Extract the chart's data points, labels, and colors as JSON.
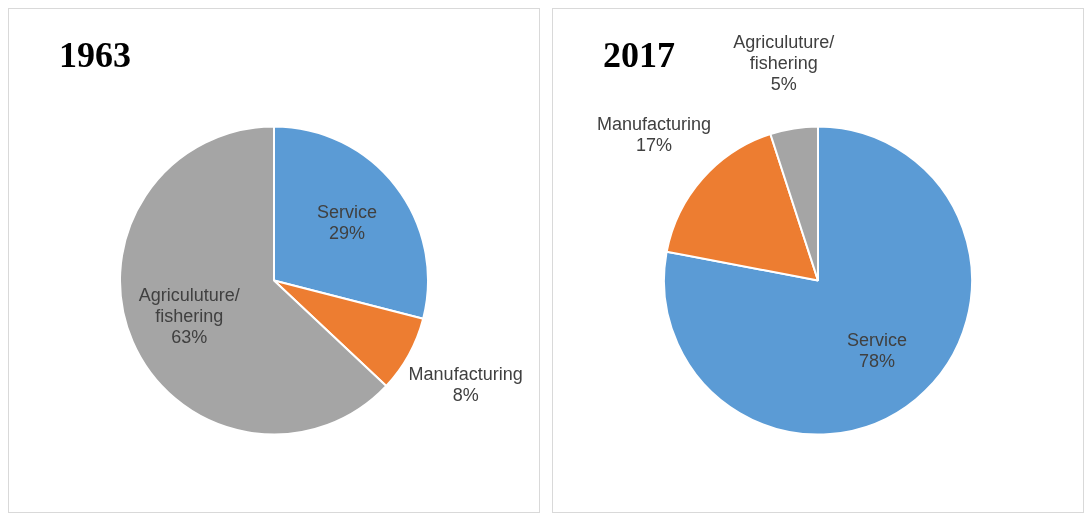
{
  "chart_data": [
    {
      "type": "pie",
      "title": "1963",
      "categories": [
        "Service",
        "Manufacturing",
        "Agriculuture/ fishering"
      ],
      "values": [
        29,
        8,
        63
      ],
      "colors": [
        "#5b9bd5",
        "#ed7d31",
        "#a5a5a5"
      ],
      "value_labels": [
        "29%",
        "8%",
        "63%"
      ]
    },
    {
      "type": "pie",
      "title": "2017",
      "categories": [
        "Service",
        "Manufacturing",
        "Agriculuture/ fishering"
      ],
      "values": [
        78,
        17,
        5
      ],
      "colors": [
        "#5b9bd5",
        "#ed7d31",
        "#a5a5a5"
      ],
      "value_labels": [
        "78%",
        "17%",
        "5%"
      ]
    }
  ]
}
